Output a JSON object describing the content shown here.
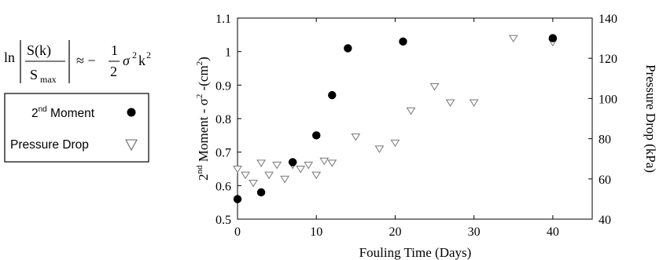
{
  "equation": {
    "ln": "ln",
    "num": "S(k)",
    "den_s": "S",
    "den_sub": "max",
    "approx": "≈ −",
    "frac_num": "1",
    "frac_den": "2",
    "tail": "σ",
    "sup2": "2",
    "k": "k",
    "ksup": "2"
  },
  "legend": {
    "items": [
      {
        "label_prefix": "2",
        "label_sup": "nd",
        "label_rest": " Moment",
        "marker": "filled-circle"
      },
      {
        "label_prefix": "Pressure Drop",
        "label_sup": "",
        "label_rest": "",
        "marker": "open-triangle-down"
      }
    ]
  },
  "chart_data": {
    "type": "scatter",
    "xlabel": "Fouling Time (Days)",
    "ylabel_left": {
      "p1": "2",
      "sup1": "nd",
      "p2": " Moment  - σ",
      "sup2": "2",
      "p3": " -(cm",
      "sup3": "2",
      "p4": ")"
    },
    "ylabel_right": "Pressure Drop (kPa)",
    "xlim": [
      0,
      45
    ],
    "ylim_left": [
      0.5,
      1.1
    ],
    "ylim_right": [
      40,
      140
    ],
    "x_ticks": [
      "0",
      "10",
      "20",
      "30",
      "40"
    ],
    "y_left_ticks": [
      "0.5",
      "0.6",
      "0.7",
      "0.8",
      "0.9",
      "1",
      "1.1"
    ],
    "y_right_ticks": [
      "40",
      "60",
      "80",
      "100",
      "120",
      "140"
    ],
    "series": [
      {
        "name": "2nd Moment",
        "axis": "left",
        "marker": "filled-circle",
        "color": "#000000",
        "points": [
          [
            0,
            0.56
          ],
          [
            3,
            0.58
          ],
          [
            7,
            0.67
          ],
          [
            10,
            0.75
          ],
          [
            12,
            0.87
          ],
          [
            14,
            1.01
          ],
          [
            21,
            1.03
          ],
          [
            40,
            1.04
          ]
        ]
      },
      {
        "name": "Pressure Drop",
        "axis": "right",
        "marker": "open-triangle-down",
        "color": "#777777",
        "points": [
          [
            0,
            65
          ],
          [
            1,
            62
          ],
          [
            2,
            58
          ],
          [
            3,
            68
          ],
          [
            4,
            62
          ],
          [
            5,
            67
          ],
          [
            6,
            60
          ],
          [
            7,
            67
          ],
          [
            8,
            65
          ],
          [
            9,
            67
          ],
          [
            10,
            62
          ],
          [
            11,
            69
          ],
          [
            12,
            68
          ],
          [
            15,
            81
          ],
          [
            18,
            75
          ],
          [
            20,
            78
          ],
          [
            22,
            94
          ],
          [
            25,
            106
          ],
          [
            27,
            98
          ],
          [
            30,
            98
          ],
          [
            35,
            130
          ],
          [
            40,
            128
          ]
        ]
      }
    ],
    "legend_position": "outside-left",
    "grid": false
  }
}
